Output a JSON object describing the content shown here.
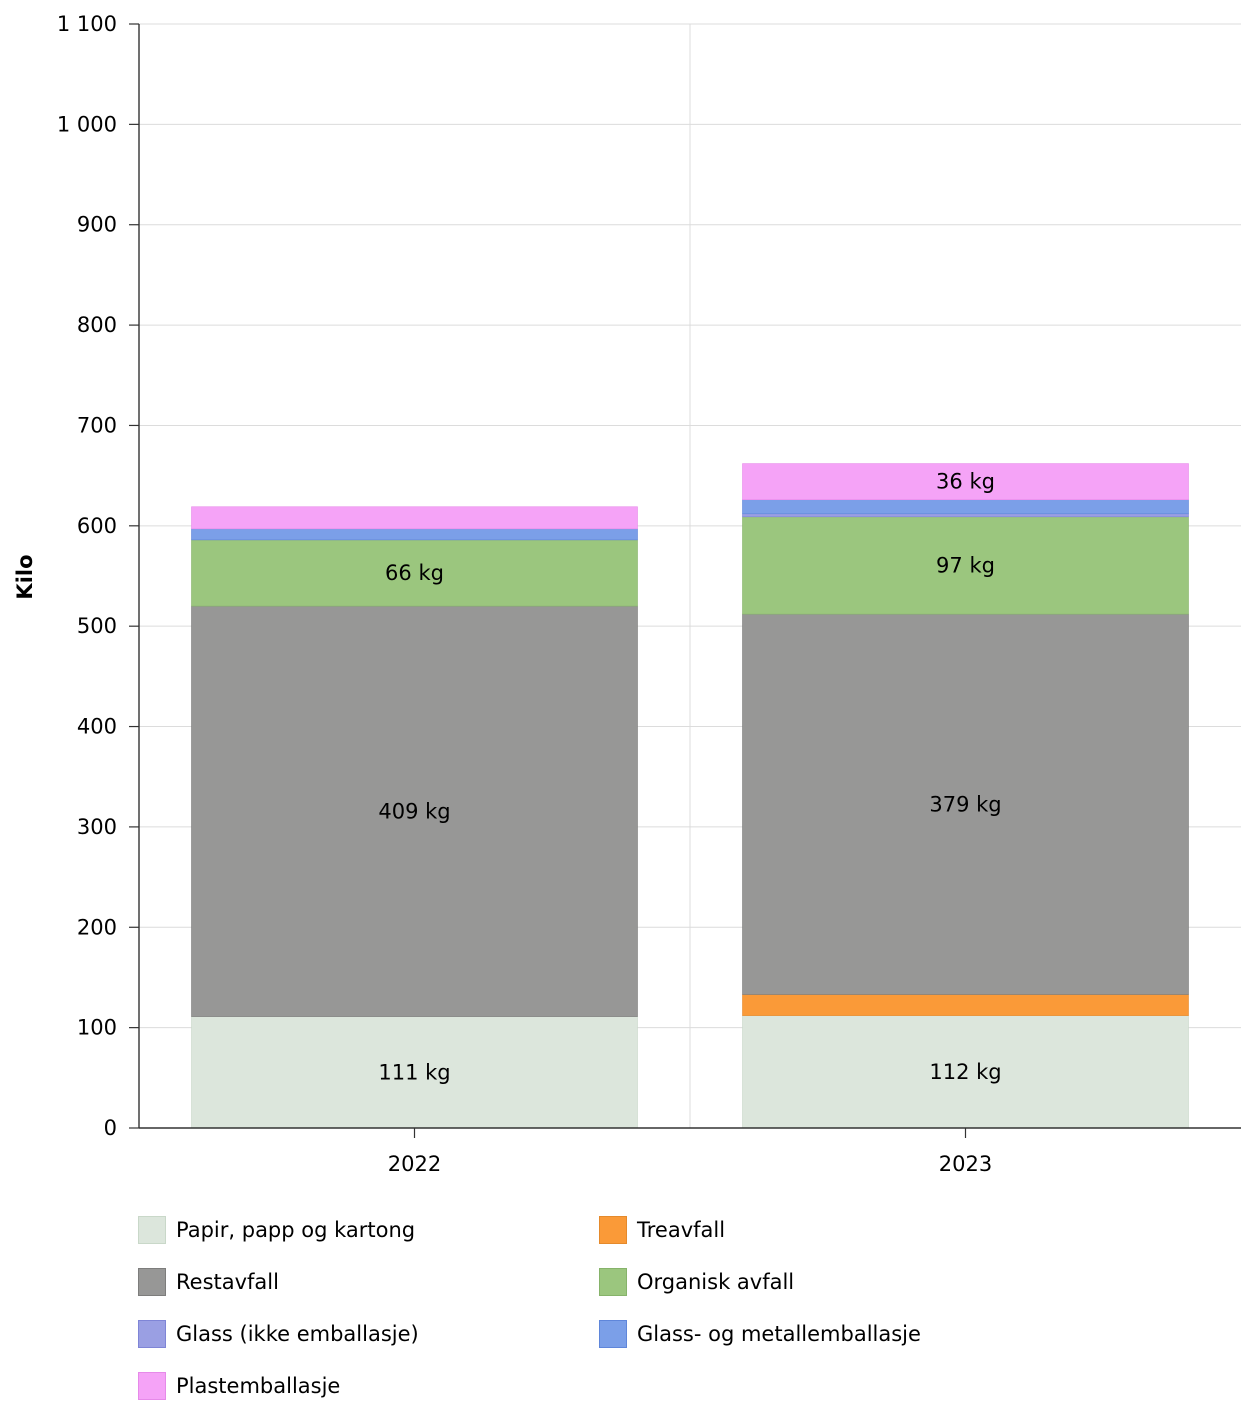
{
  "chart_data": {
    "type": "bar",
    "stacked": true,
    "categories": [
      "2022",
      "2023"
    ],
    "ylabel": "Kilo",
    "xlabel": "",
    "ylim": [
      0,
      1100
    ],
    "yticks": [
      "0",
      "100",
      "200",
      "300",
      "400",
      "500",
      "600",
      "700",
      "800",
      "900",
      "1 000",
      "1 100"
    ],
    "grid": true,
    "legend_position": "bottom",
    "series": [
      {
        "name": "Papir, papp og kartong",
        "values": [
          111,
          112
        ],
        "labels": [
          "111 kg",
          "112 kg"
        ],
        "color": "#dce6dc",
        "border": "#c9d8c9"
      },
      {
        "name": "Treavfall",
        "values": [
          0,
          21
        ],
        "labels": [
          "",
          ""
        ],
        "color": "#fa9a38",
        "border": "#e58a2c"
      },
      {
        "name": "Restavfall",
        "values": [
          409,
          379
        ],
        "labels": [
          "409 kg",
          "379 kg"
        ],
        "color": "#979796",
        "border": "#7d7d7c"
      },
      {
        "name": "Organisk avfall",
        "values": [
          66,
          97
        ],
        "labels": [
          "66 kg",
          "97 kg"
        ],
        "color": "#9bc67e",
        "border": "#86b36a"
      },
      {
        "name": "Glass (ikke emballasje)",
        "values": [
          0,
          3
        ],
        "labels": [
          "",
          ""
        ],
        "color": "#9a9fe3",
        "border": "#7f85d6"
      },
      {
        "name": "Glass- og metallemballasje",
        "values": [
          11,
          14
        ],
        "labels": [
          "",
          ""
        ],
        "color": "#7b9fe8",
        "border": "#5f86da"
      },
      {
        "name": "Plastemballasje",
        "values": [
          22,
          36
        ],
        "labels": [
          "",
          "36 kg"
        ],
        "color": "#f5a3f7",
        "border": "#e68ae9"
      }
    ]
  }
}
